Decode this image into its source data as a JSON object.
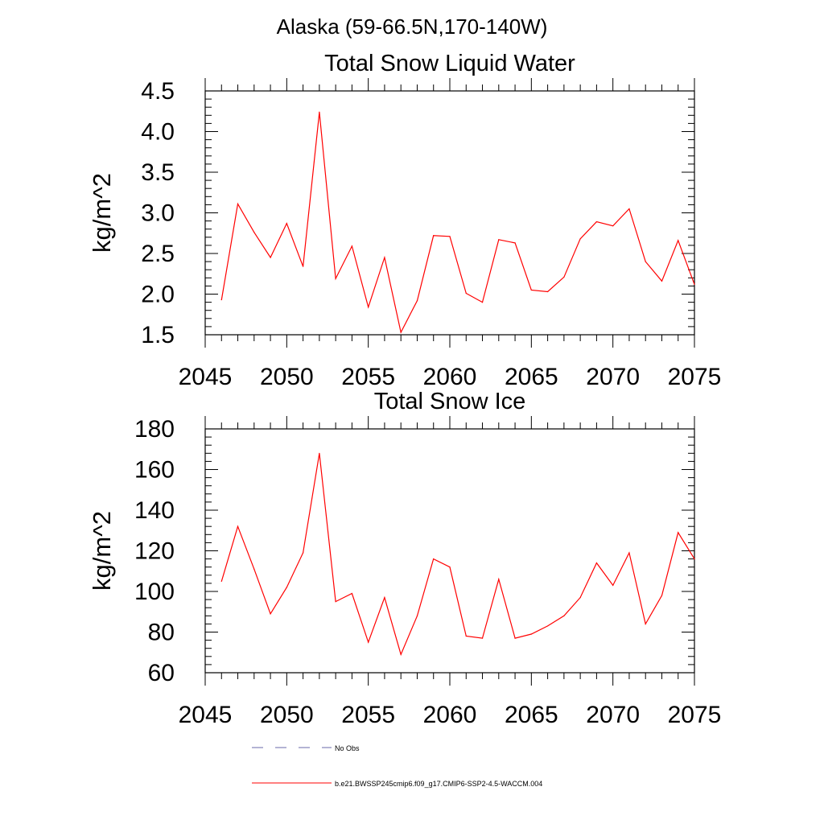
{
  "figure": {
    "title": "Alaska (59-66.5N,170-140W)",
    "legend": [
      {
        "label": "No Obs",
        "color": "#6a6aaa",
        "dash": "dashed"
      },
      {
        "label": "b.e21.BWSSP245cmip6.f09_g17.CMIP6-SSP2-4.5-WACCM.004",
        "color": "#ff0000",
        "dash": "solid"
      }
    ]
  },
  "chart_data": [
    {
      "type": "line",
      "title": "Total Snow Liquid Water",
      "xlabel": "",
      "ylabel": "kg/m^2",
      "xlim": [
        2045,
        2075
      ],
      "ylim": [
        1.5,
        4.5
      ],
      "xticks": [
        2045,
        2050,
        2055,
        2060,
        2065,
        2070,
        2075
      ],
      "yticks": [
        1.5,
        2.0,
        2.5,
        3.0,
        3.5,
        4.0,
        4.5
      ],
      "ytick_labels": [
        "1.5",
        "2.0",
        "2.5",
        "3.0",
        "3.5",
        "4.0",
        "4.5"
      ],
      "grid": false,
      "series": [
        {
          "name": "b.e21.BWSSP245cmip6.f09_g17.CMIP6-SSP2-4.5-WACCM.004",
          "color": "#ff0000",
          "x": [
            2046,
            2047,
            2048,
            2049,
            2050,
            2051,
            2052,
            2053,
            2054,
            2055,
            2056,
            2057,
            2058,
            2059,
            2060,
            2061,
            2062,
            2063,
            2064,
            2065,
            2066,
            2067,
            2068,
            2069,
            2070,
            2071,
            2072,
            2073,
            2074,
            2075
          ],
          "values": [
            1.93,
            3.11,
            2.76,
            2.45,
            2.87,
            2.34,
            4.24,
            2.19,
            2.59,
            1.84,
            2.45,
            1.53,
            1.92,
            2.72,
            2.71,
            2.01,
            1.9,
            2.67,
            2.63,
            2.05,
            2.03,
            2.21,
            2.68,
            2.89,
            2.84,
            3.05,
            2.4,
            2.16,
            2.66,
            2.12
          ]
        }
      ]
    },
    {
      "type": "line",
      "title": "Total Snow Ice",
      "xlabel": "",
      "ylabel": "kg/m^2",
      "xlim": [
        2045,
        2075
      ],
      "ylim": [
        60,
        180
      ],
      "xticks": [
        2045,
        2050,
        2055,
        2060,
        2065,
        2070,
        2075
      ],
      "yticks": [
        60,
        80,
        100,
        120,
        140,
        160,
        180
      ],
      "ytick_labels": [
        "60",
        "80",
        "100",
        "120",
        "140",
        "160",
        "180"
      ],
      "grid": false,
      "series": [
        {
          "name": "b.e21.BWSSP245cmip6.f09_g17.CMIP6-SSP2-4.5-WACCM.004",
          "color": "#ff0000",
          "x": [
            2046,
            2047,
            2048,
            2049,
            2050,
            2051,
            2052,
            2053,
            2054,
            2055,
            2056,
            2057,
            2058,
            2059,
            2060,
            2061,
            2062,
            2063,
            2064,
            2065,
            2066,
            2067,
            2068,
            2069,
            2070,
            2071,
            2072,
            2073,
            2074,
            2075
          ],
          "values": [
            105,
            132,
            111,
            89,
            102,
            119,
            168,
            95,
            99,
            75,
            97,
            69,
            88,
            116,
            112,
            78,
            77,
            106,
            77,
            79,
            83,
            88,
            97,
            114,
            103,
            119,
            84,
            98,
            129,
            116
          ]
        }
      ]
    }
  ]
}
